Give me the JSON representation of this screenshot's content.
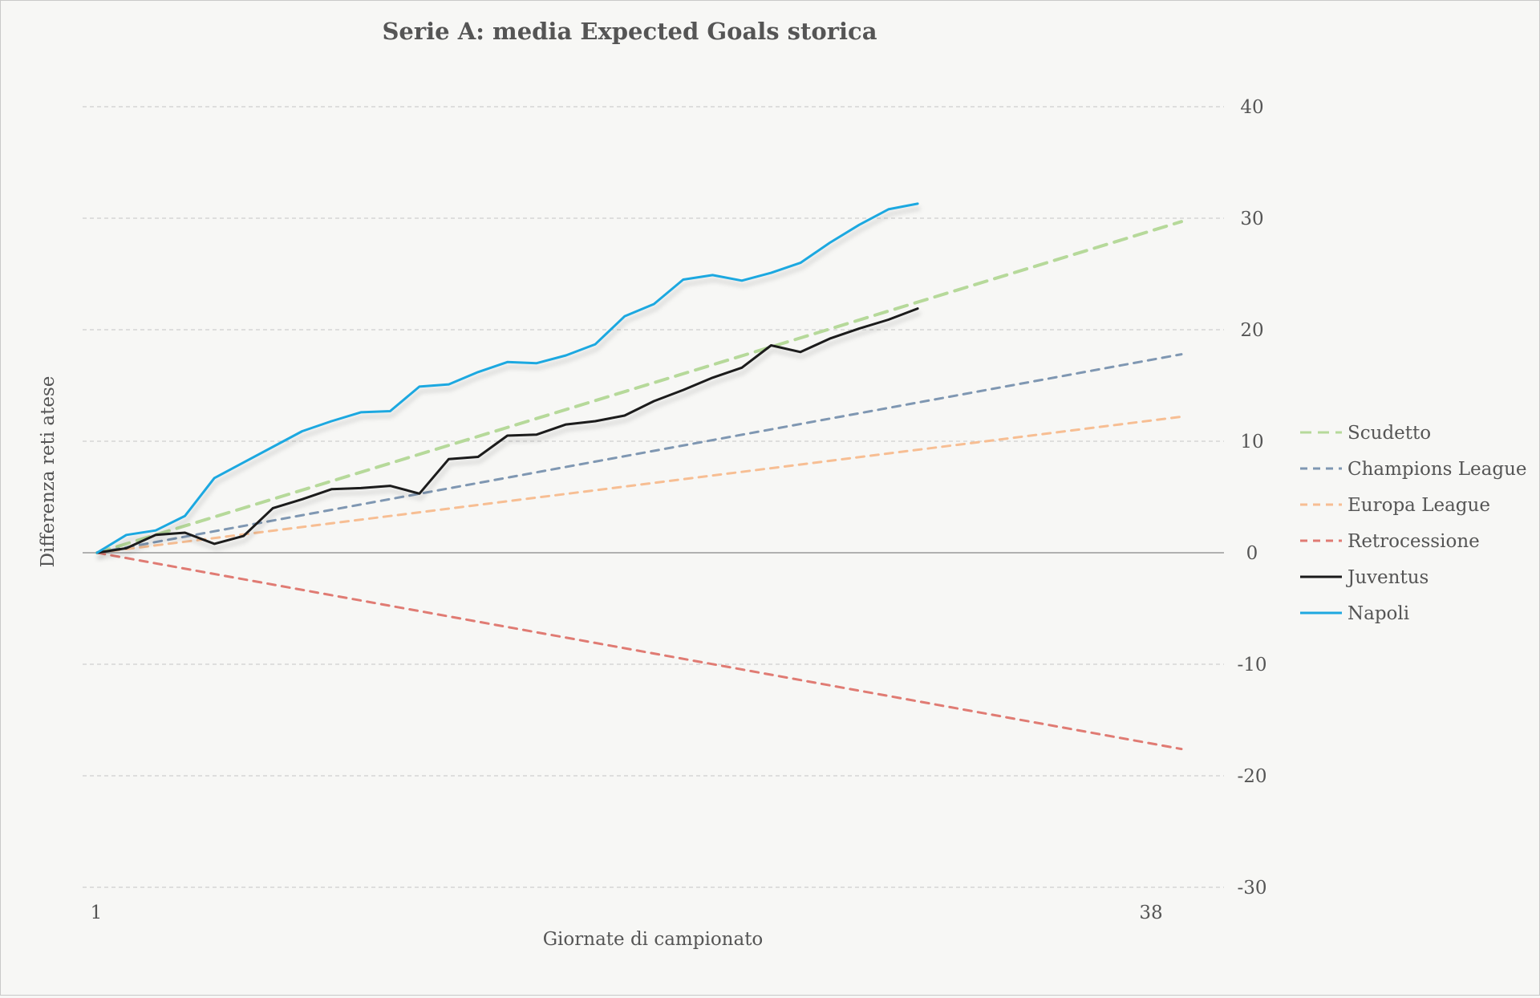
{
  "chart_data": {
    "type": "line",
    "title": "Serie A: media Expected Goals storica",
    "xlabel": "Giornate di campionato",
    "ylabel": "Differenza reti atese",
    "xlim": [
      1,
      38
    ],
    "ylim": [
      -30,
      40
    ],
    "x_ticks": [
      1,
      38
    ],
    "y_ticks": [
      40,
      30,
      20,
      10,
      0,
      -10,
      -20,
      -30
    ],
    "grid": true,
    "legend_position": "right",
    "series": [
      {
        "name": "Scudetto",
        "style": "dashed",
        "color": "#b6d99a",
        "x": [
          1,
          38
        ],
        "y": [
          0,
          29.7
        ]
      },
      {
        "name": "Champions League",
        "style": "dashed",
        "color": "#7f97b2",
        "x": [
          1,
          38
        ],
        "y": [
          0,
          17.8
        ]
      },
      {
        "name": "Europa League",
        "style": "dashed",
        "color": "#f7be93",
        "x": [
          1,
          38
        ],
        "y": [
          0,
          12.2
        ]
      },
      {
        "name": "Retrocessione",
        "style": "dashed",
        "color": "#e07b73",
        "x": [
          1,
          38
        ],
        "y": [
          0,
          -17.6
        ]
      },
      {
        "name": "Juventus",
        "style": "solid",
        "color": "#1a1a1a",
        "x": [
          1,
          2,
          3,
          4,
          5,
          6,
          7,
          8,
          9,
          10,
          11,
          12,
          13,
          14,
          15,
          16,
          17,
          18,
          19,
          20,
          21,
          22,
          23,
          24,
          25,
          26,
          27,
          28,
          29
        ],
        "y": [
          0,
          0.4,
          1.6,
          1.8,
          0.8,
          1.5,
          4.0,
          4.8,
          5.7,
          5.8,
          6.0,
          5.3,
          8.4,
          8.6,
          10.5,
          10.6,
          11.5,
          11.8,
          12.3,
          13.6,
          14.6,
          15.7,
          16.6,
          18.6,
          18.0,
          19.2,
          20.1,
          20.9,
          21.9
        ]
      },
      {
        "name": "Napoli",
        "style": "solid",
        "color": "#1fa8e0",
        "x": [
          1,
          2,
          3,
          4,
          5,
          6,
          7,
          8,
          9,
          10,
          11,
          12,
          13,
          14,
          15,
          16,
          17,
          18,
          19,
          20,
          21,
          22,
          23,
          24,
          25,
          26,
          27,
          28,
          29
        ],
        "y": [
          0,
          1.6,
          2.0,
          3.3,
          6.7,
          8.1,
          9.5,
          10.9,
          11.8,
          12.6,
          12.7,
          14.9,
          15.1,
          16.2,
          17.1,
          17.0,
          17.7,
          18.7,
          21.2,
          22.3,
          24.5,
          24.9,
          24.4,
          25.1,
          26.0,
          27.8,
          29.4,
          30.8,
          31.3
        ]
      }
    ]
  }
}
